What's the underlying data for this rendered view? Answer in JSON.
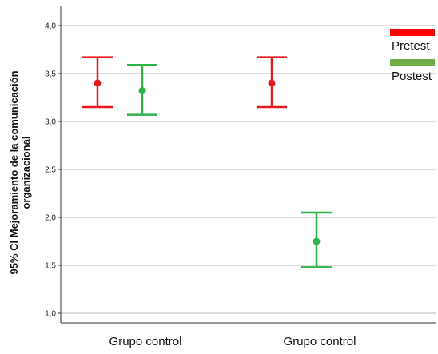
{
  "chart_data": {
    "type": "errorbar",
    "ylabel_lines": [
      "95% CI Mejoramiento de la comunicación",
      "organizacional"
    ],
    "ylim": [
      0.9,
      4.2
    ],
    "y_ticks": [
      1.0,
      1.5,
      2.0,
      2.5,
      3.0,
      3.5,
      4.0
    ],
    "y_tick_labels": [
      "1,0",
      "1,5",
      "2,0",
      "2,5",
      "3,0",
      "3,5",
      "4,0"
    ],
    "grid": true,
    "legend_position": "top-right",
    "categories": [
      "Grupo control",
      "Grupo control"
    ],
    "series": [
      {
        "name": "Pretest",
        "color": "#e41a1c",
        "points": [
          {
            "mean": 3.4,
            "lower": 3.15,
            "upper": 3.67
          },
          {
            "mean": 3.4,
            "lower": 3.15,
            "upper": 3.67
          }
        ]
      },
      {
        "name": "Postest",
        "color": "#2db34a",
        "points": [
          {
            "mean": 3.32,
            "lower": 3.07,
            "upper": 3.59
          },
          {
            "mean": 1.75,
            "lower": 1.48,
            "upper": 2.05
          }
        ]
      }
    ]
  },
  "legend_colors": {
    "Pretest": "#ff0000",
    "Postest": "#70ad47"
  }
}
